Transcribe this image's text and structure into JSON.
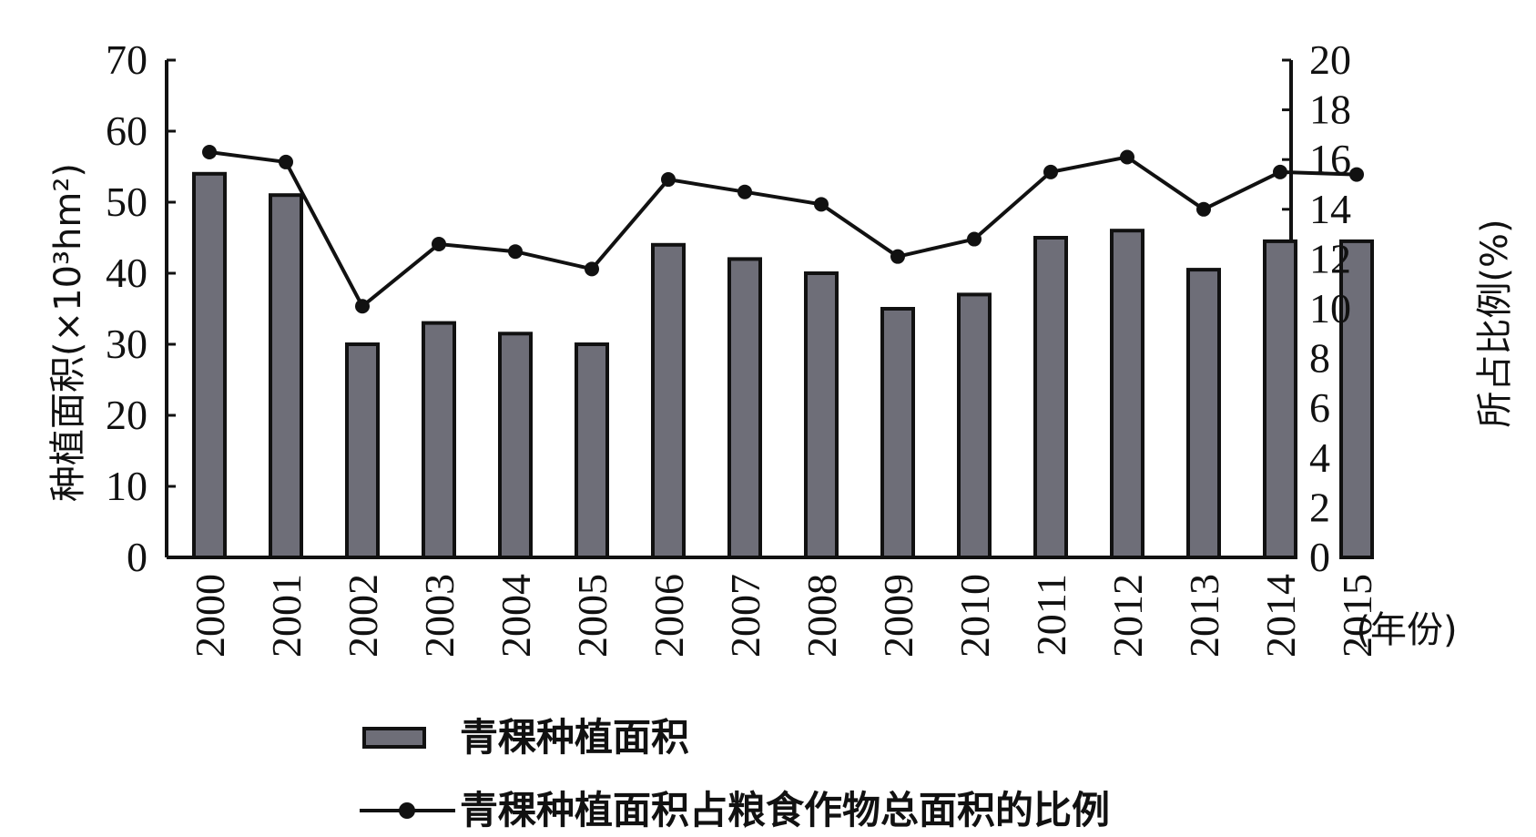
{
  "chart_data": {
    "type": "bar+line",
    "categories": [
      "2000",
      "2001",
      "2002",
      "2003",
      "2004",
      "2005",
      "2006",
      "2007",
      "2008",
      "2009",
      "2010",
      "2011",
      "2012",
      "2013",
      "2014",
      "2015"
    ],
    "series": [
      {
        "name": "青稞种植面积",
        "type": "bar",
        "axis": "left",
        "values": [
          54,
          51,
          30,
          33,
          31.5,
          30,
          44,
          42,
          40,
          35,
          37,
          45,
          46,
          40.5,
          44.5,
          44.5
        ]
      },
      {
        "name": "青稞种植面积占粮食作物总面积的比例",
        "type": "line",
        "axis": "right",
        "values": [
          16.3,
          15.9,
          10.1,
          12.6,
          12.3,
          11.6,
          15.2,
          14.7,
          14.2,
          12.1,
          12.8,
          15.5,
          16.1,
          14.0,
          15.5,
          15.4
        ]
      }
    ],
    "ylabel_left": "种植面积(×10³hm²)",
    "ylabel_right": "所占比例(%)",
    "xlabel": "(年份)",
    "ylim_left": [
      0,
      70
    ],
    "yticks_left": [
      0,
      10,
      20,
      30,
      40,
      50,
      60,
      70
    ],
    "ylim_right": [
      0,
      20
    ],
    "yticks_right": [
      0,
      2,
      4,
      6,
      8,
      10,
      12,
      14,
      16,
      18,
      20
    ],
    "grid": false,
    "legend_position": "bottom",
    "colors": {
      "bar_fill": "#6e6e78",
      "bar_stroke": "#111111",
      "line": "#111111"
    }
  }
}
